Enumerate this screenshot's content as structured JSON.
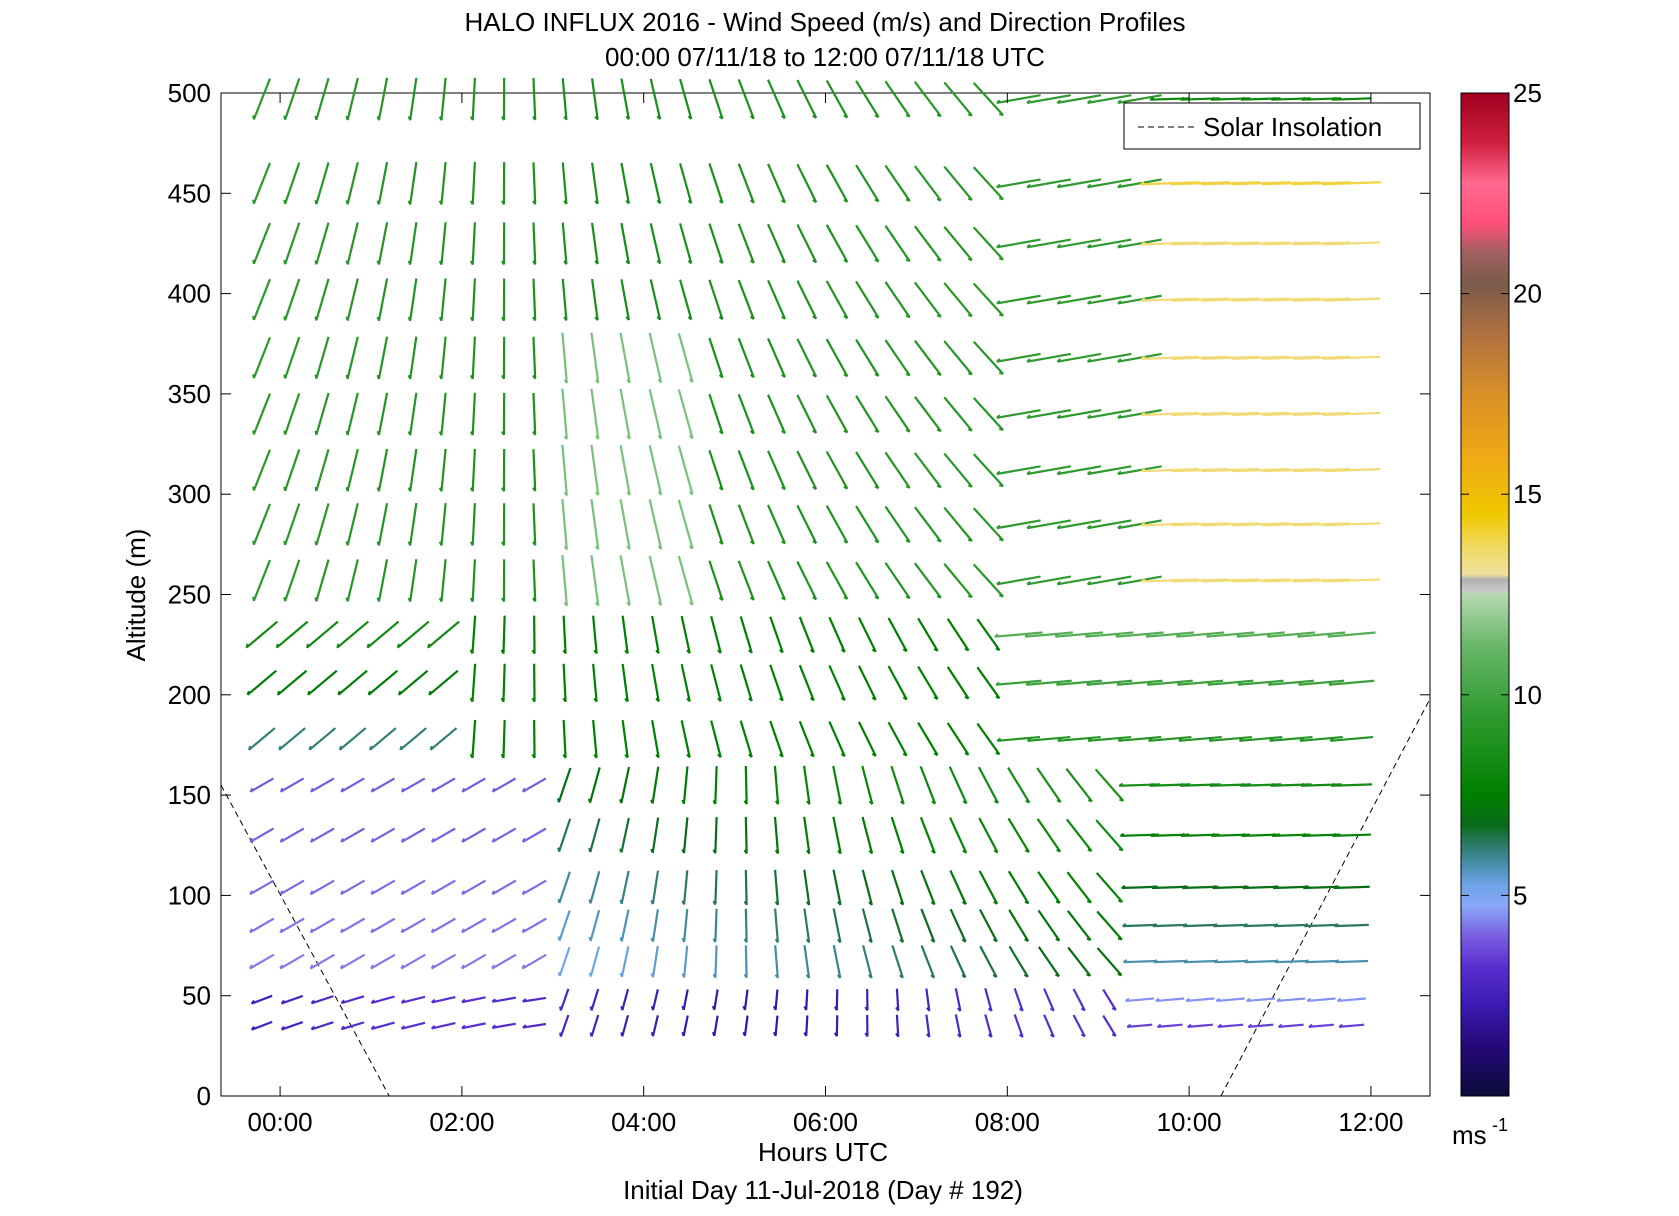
{
  "chart_data": {
    "type": "wind-barb-profile",
    "title": "HALO INFLUX 2016 - Wind Speed (m/s) and Direction Profiles",
    "subtitle": "00:00 07/11/18 to 12:00 07/11/18  UTC",
    "xlabel": "Hours UTC",
    "xlabel2": "Initial Day 11-Jul-2018 (Day # 192)",
    "ylabel": "Altitude (m)",
    "x_tick_labels": [
      "00:00",
      "02:00",
      "04:00",
      "06:00",
      "08:00",
      "10:00",
      "12:00"
    ],
    "x_ticks_hours": [
      0,
      2,
      4,
      6,
      8,
      10,
      12
    ],
    "xlim_hours": [
      -0.65,
      12.65
    ],
    "y_ticks": [
      0,
      50,
      100,
      150,
      200,
      250,
      300,
      350,
      400,
      450,
      500
    ],
    "ylim": [
      0,
      500
    ],
    "colorbar": {
      "label": "ms",
      "label_exponent": "-1",
      "ticks": [
        5,
        10,
        15,
        20,
        25
      ],
      "range": [
        0,
        25
      ]
    },
    "legend": {
      "entries": [
        "Solar Insolation"
      ],
      "placement": "top-right",
      "style": "dashed"
    },
    "grid": false,
    "solar_insolation": [
      {
        "x_hours": [
          -0.65,
          1.2
        ],
        "y": [
          155,
          0
        ]
      },
      {
        "x_hours": [
          10.35,
          12.65
        ],
        "y": [
          0,
          198
        ]
      }
    ],
    "profile_heights_m": [
      35,
      48,
      67,
      85,
      104,
      130,
      155,
      178,
      206,
      230,
      257,
      285,
      312,
      340,
      368,
      397,
      425,
      455,
      497
    ],
    "time_step_hours": 0.333,
    "time_start_hours": -0.2,
    "time_end_hours": 12.1,
    "note_data_regions": [
      {
        "altitude_m": "<60",
        "hours": "all",
        "speed_ms": "2-4",
        "direction_deg": "northwest to north"
      },
      {
        "altitude_m": "70-150",
        "hours": "0-3",
        "speed_ms": "3-5",
        "direction_deg": "northwest"
      },
      {
        "altitude_m": "100-200",
        "hours": "3-8",
        "speed_ms": "6-9",
        "direction_deg": "north to south"
      },
      {
        "altitude_m": "250-500",
        "hours": "0-8",
        "speed_ms": "8-11",
        "direction_deg": "north to southwest"
      },
      {
        "altitude_m": "250-450",
        "hours": "9.5-12",
        "speed_ms": "13-14",
        "direction_deg": "west"
      },
      {
        "altitude_m": "80-180",
        "hours": "9.5-12",
        "speed_ms": "6-8",
        "direction_deg": "west"
      }
    ]
  }
}
